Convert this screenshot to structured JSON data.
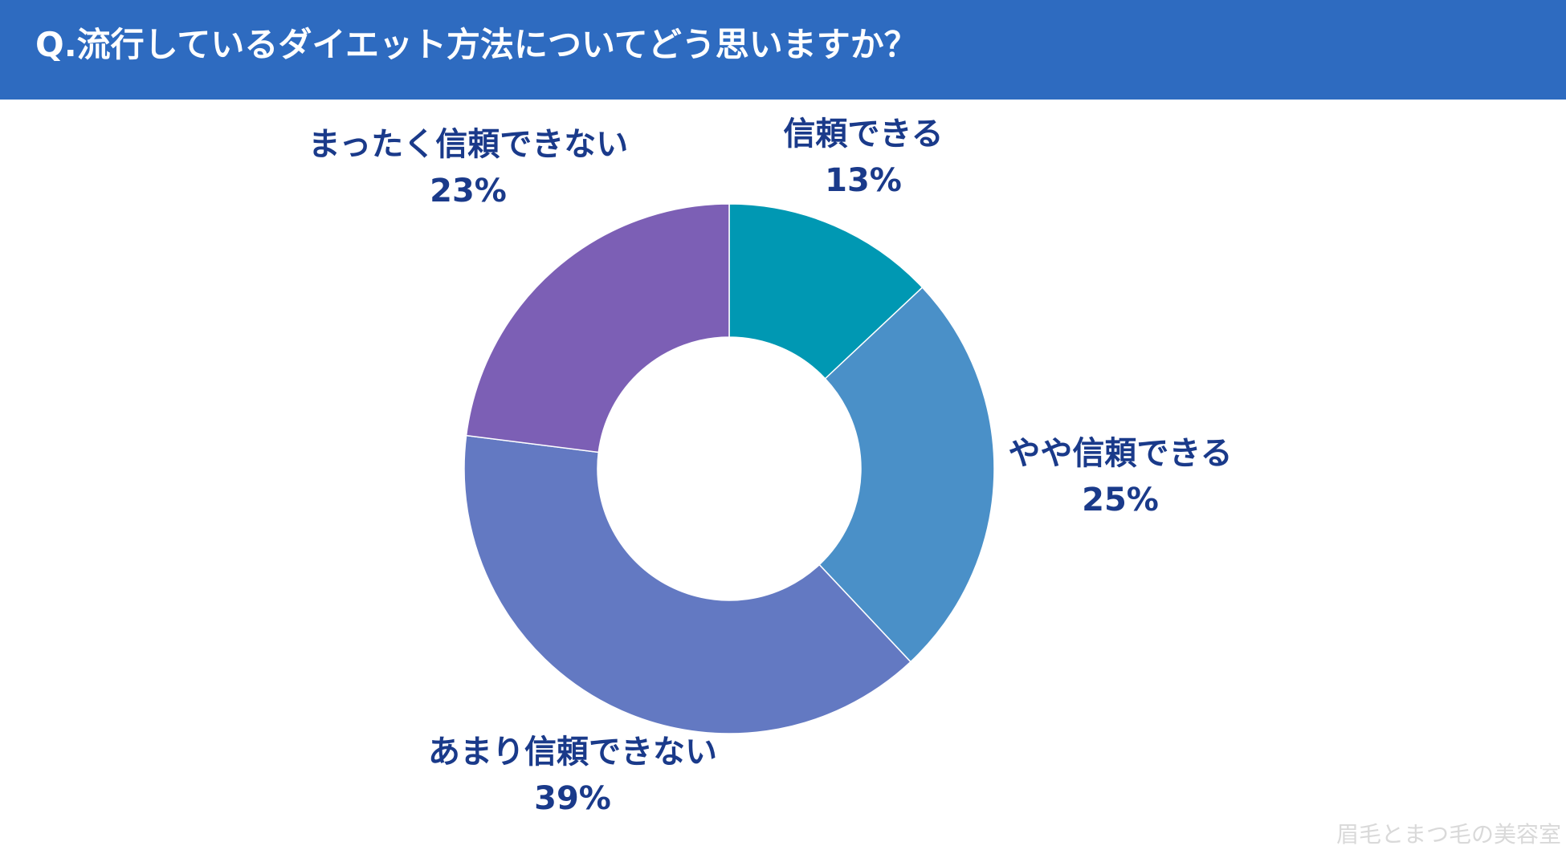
{
  "header": {
    "title": "Q.流行しているダイエット方法についてどう思いますか？"
  },
  "watermark": "眉毛とまつ毛の美容室",
  "chart_data": {
    "type": "pie",
    "variant": "donut",
    "title": "",
    "categories": [
      "信頼できる",
      "やや信頼できる",
      "あまり信頼できない",
      "まったく信頼できない"
    ],
    "values": [
      13,
      25,
      39,
      23
    ],
    "value_labels": [
      "13%",
      "25%",
      "39%",
      "23%"
    ],
    "colors": [
      "#0098b3",
      "#4a90c8",
      "#6379c2",
      "#7c5fb5"
    ],
    "label_color": "#1a3a8a",
    "legend": "none"
  }
}
